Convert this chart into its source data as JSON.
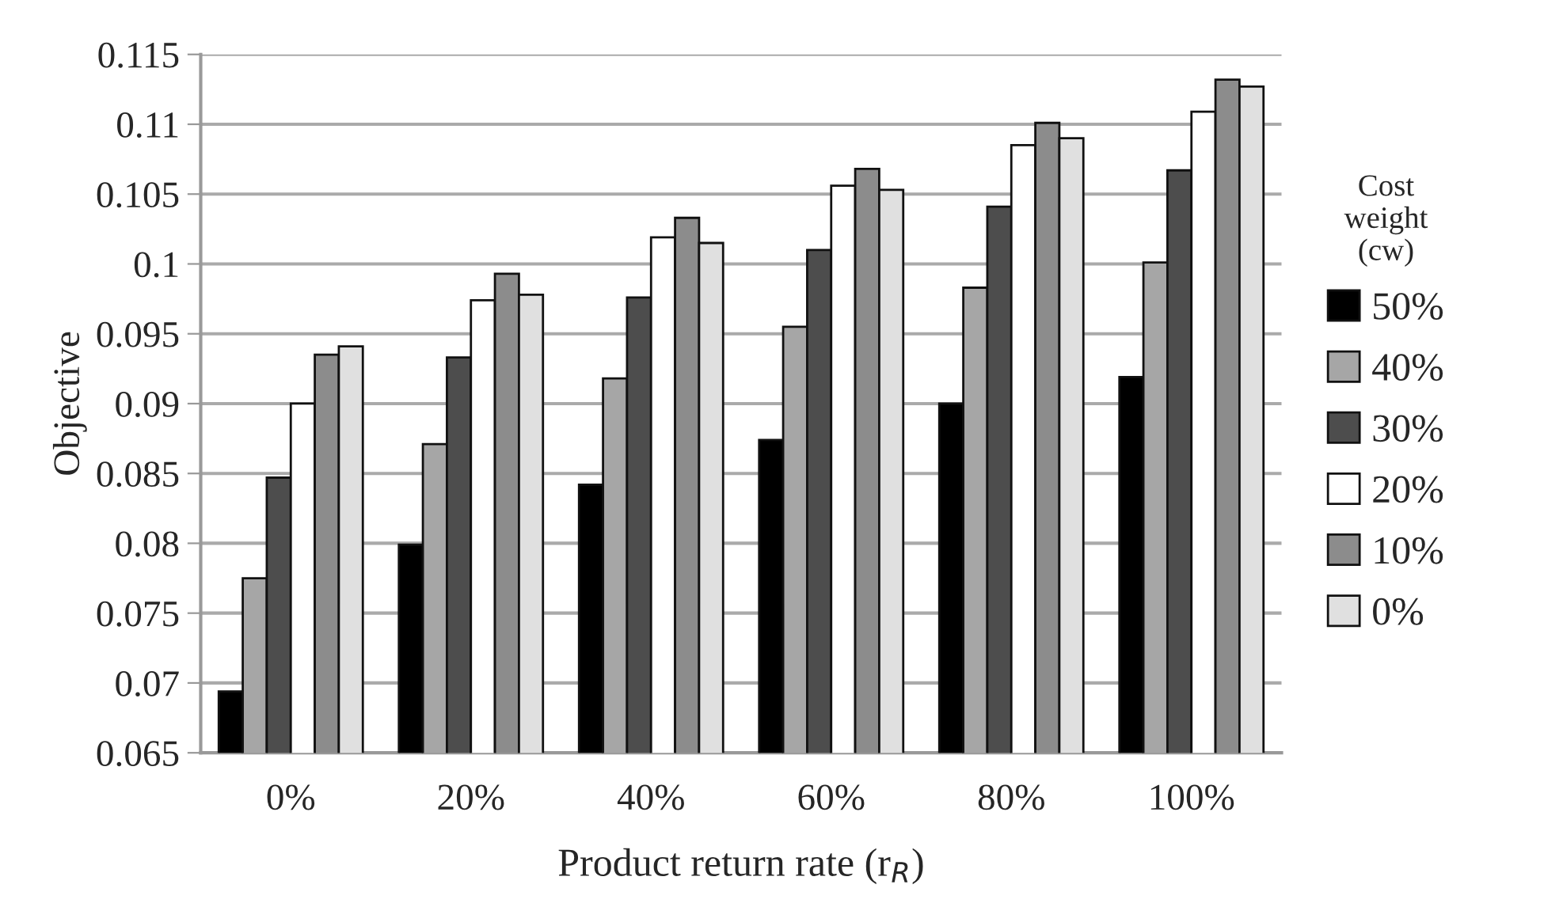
{
  "chart_data": {
    "type": "bar",
    "xlabel": "Product return rate (r$_{R}$)",
    "ylabel": "Objective",
    "legend_title": "Cost\nweight\n(cw)",
    "categories": [
      "0%",
      "20%",
      "40%",
      "60%",
      "80%",
      "100%"
    ],
    "series": [
      {
        "name": "50%",
        "color": "#000000",
        "values": [
          0.0694,
          0.0799,
          0.0842,
          0.0874,
          0.09,
          0.0919
        ]
      },
      {
        "name": "40%",
        "color": "#a6a6a6",
        "values": [
          0.0775,
          0.0871,
          0.0918,
          0.0955,
          0.0983,
          0.1001
        ]
      },
      {
        "name": "30%",
        "color": "#4d4d4d",
        "values": [
          0.0847,
          0.0933,
          0.0976,
          0.101,
          0.1041,
          0.1067
        ]
      },
      {
        "name": "20%",
        "color": "#ffffff",
        "values": [
          0.09,
          0.0974,
          0.1019,
          0.1056,
          0.1085,
          0.1109
        ]
      },
      {
        "name": "10%",
        "color": "#8c8c8c",
        "values": [
          0.0935,
          0.0993,
          0.1033,
          0.1068,
          0.1101,
          0.1132
        ]
      },
      {
        "name": "0%",
        "color": "#e0e0e0",
        "values": [
          0.0941,
          0.0978,
          0.1015,
          0.1053,
          0.109,
          0.1127
        ]
      }
    ],
    "ylim": [
      0.065,
      0.115
    ],
    "yticks": [
      0.065,
      0.07,
      0.075,
      0.08,
      0.085,
      0.09,
      0.095,
      0.1,
      0.105,
      0.11,
      0.115
    ],
    "grid": "y",
    "legend": "right"
  }
}
